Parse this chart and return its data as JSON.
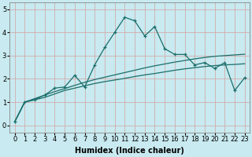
{
  "xlabel": "Humidex (Indice chaleur)",
  "bg_color": "#c8eaf0",
  "grid_color": "#d4a0a0",
  "line_color": "#1a6e6a",
  "marker": "+",
  "xlim": [
    -0.5,
    23.5
  ],
  "ylim": [
    -0.3,
    5.3
  ],
  "yticks": [
    0,
    1,
    2,
    3,
    4,
    5
  ],
  "xticks": [
    0,
    1,
    2,
    3,
    4,
    5,
    6,
    7,
    8,
    9,
    10,
    11,
    12,
    13,
    14,
    15,
    16,
    17,
    18,
    19,
    20,
    21,
    22,
    23
  ],
  "line1_x": [
    0,
    1,
    2,
    3,
    4,
    5,
    6,
    7,
    8,
    9,
    10,
    11,
    12,
    13,
    14,
    15,
    16,
    17,
    18,
    19,
    20,
    21,
    22,
    23
  ],
  "line1_y": [
    0.15,
    1.0,
    1.1,
    1.2,
    1.35,
    1.5,
    1.6,
    1.7,
    1.8,
    1.88,
    1.95,
    2.02,
    2.1,
    2.17,
    2.23,
    2.3,
    2.37,
    2.43,
    2.48,
    2.53,
    2.57,
    2.6,
    2.62,
    2.65
  ],
  "line2_x": [
    0,
    1,
    2,
    3,
    4,
    5,
    6,
    7,
    8,
    9,
    10,
    11,
    12,
    13,
    14,
    15,
    16,
    17,
    18,
    19,
    20,
    21,
    22,
    23
  ],
  "line2_y": [
    0.15,
    1.0,
    1.15,
    1.3,
    1.45,
    1.58,
    1.72,
    1.85,
    1.97,
    2.07,
    2.17,
    2.27,
    2.37,
    2.47,
    2.56,
    2.64,
    2.72,
    2.79,
    2.86,
    2.92,
    2.97,
    3.0,
    3.03,
    3.06
  ],
  "line3_x": [
    0,
    1,
    2,
    3,
    4,
    5,
    6,
    7,
    8,
    9,
    10,
    11,
    12,
    13,
    14,
    15,
    16,
    17,
    18,
    19,
    20,
    21,
    22,
    23
  ],
  "line3_y": [
    0.15,
    1.0,
    1.1,
    1.3,
    1.6,
    1.65,
    2.15,
    1.65,
    2.6,
    3.35,
    4.0,
    4.65,
    4.5,
    3.85,
    4.25,
    3.3,
    3.05,
    3.05,
    2.6,
    2.7,
    2.45,
    2.7,
    1.5,
    2.05
  ],
  "tick_fontsize": 6,
  "xlabel_fontsize": 7
}
